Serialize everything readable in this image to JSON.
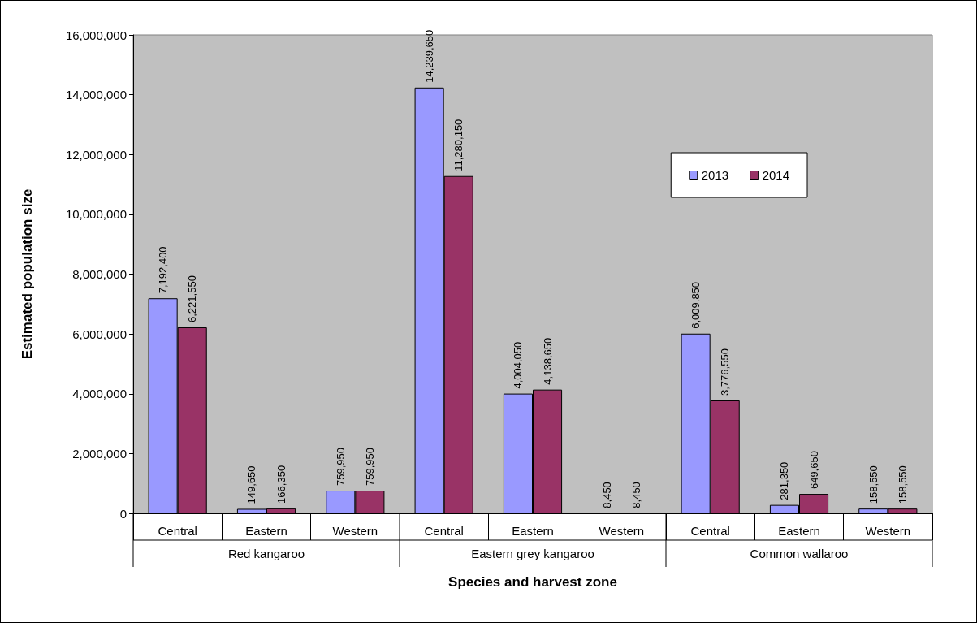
{
  "chart_data": {
    "type": "bar",
    "xlabel": "Species and harvest zone",
    "ylabel": "Estimated population size",
    "categories": [
      "Central",
      "Eastern",
      "Western",
      "Central",
      "Eastern",
      "Western",
      "Central",
      "Eastern",
      "Western"
    ],
    "annotations": [
      "Red kangaroo",
      "Eastern grey kangaroo",
      "Common wallaroo"
    ],
    "series": [
      {
        "name": "2013",
        "color": "#9999ff",
        "values": [
          7192400,
          149650,
          759950,
          14239650,
          4004050,
          8450,
          6009850,
          281350,
          158550
        ],
        "value_labels": [
          "7,192,400",
          "149,650",
          "759,950",
          "14,239,650",
          "4,004,050",
          "8,450",
          "6,009,850",
          "281,350",
          "158,550"
        ]
      },
      {
        "name": "2014",
        "color": "#993366",
        "values": [
          6221550,
          166350,
          759950,
          11280150,
          4138650,
          8450,
          3776550,
          649650,
          158550
        ],
        "value_labels": [
          "6,221,550",
          "166,350",
          "759,950",
          "11,280,150",
          "4,138,650",
          "8,450",
          "3,776,550",
          "649,650",
          "158,550"
        ]
      }
    ],
    "ylim": [
      0,
      16000000
    ],
    "yticks": [
      {
        "value": 0,
        "label": "0"
      },
      {
        "value": 2000000,
        "label": "2,000,000"
      },
      {
        "value": 4000000,
        "label": "4,000,000"
      },
      {
        "value": 6000000,
        "label": "6,000,000"
      },
      {
        "value": 8000000,
        "label": "8,000,000"
      },
      {
        "value": 10000000,
        "label": "10,000,000"
      },
      {
        "value": 12000000,
        "label": "12,000,000"
      },
      {
        "value": 14000000,
        "label": "14,000,000"
      },
      {
        "value": 16000000,
        "label": "16,000,000"
      }
    ],
    "grid": false,
    "legend": "top right"
  }
}
